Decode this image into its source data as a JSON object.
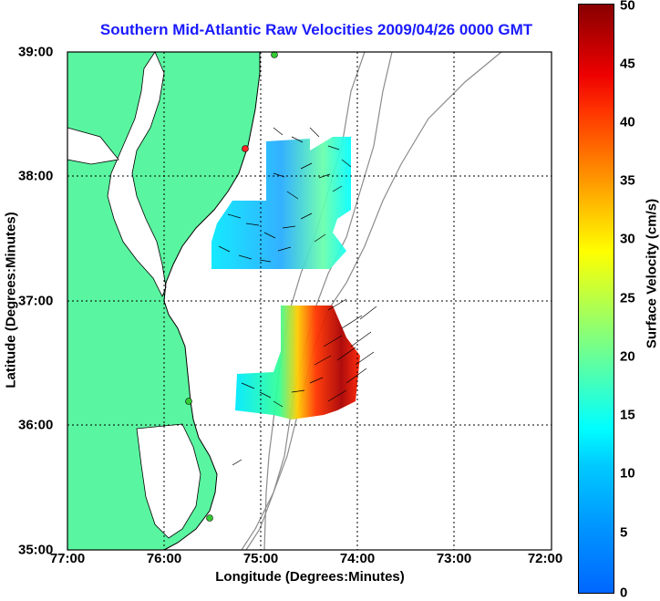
{
  "title": "Southern Mid-Atlantic Raw Velocities 2009/04/26 0000 GMT",
  "axes": {
    "xlabel": "Longitude (Degrees:Minutes)",
    "ylabel": "Latitude (Degrees:Minutes)",
    "xticks": [
      "77:00",
      "76:00",
      "75:00",
      "74:00",
      "73:00",
      "72:00"
    ],
    "yticks": [
      "39:00",
      "38:00",
      "37:00",
      "36:00",
      "35:00"
    ],
    "xrange": [
      -77,
      -72
    ],
    "yrange": [
      35,
      39
    ],
    "grid": true
  },
  "colorbar": {
    "label": "Surface Velocity (cm/s)",
    "ticks": [
      "50",
      "45",
      "40",
      "35",
      "30",
      "25",
      "20",
      "15",
      "10",
      "5",
      "0"
    ],
    "range": [
      0,
      50
    ]
  },
  "colors": {
    "land": "#5af5a0",
    "coastline": "#000000",
    "bathymetry": "#8c8c8c",
    "title": "#1a1aff",
    "station": "#33cc33",
    "station_alt": "#ff2222"
  }
}
